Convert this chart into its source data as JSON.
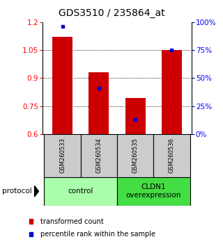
{
  "title": "GDS3510 / 235864_at",
  "samples": [
    "GSM260533",
    "GSM260534",
    "GSM260535",
    "GSM260536"
  ],
  "bar_bottoms": [
    0.6,
    0.6,
    0.6,
    0.6
  ],
  "bar_tops": [
    1.12,
    0.93,
    0.795,
    1.05
  ],
  "percentile_ranks": [
    0.96,
    0.41,
    0.13,
    0.75
  ],
  "ylim_left": [
    0.6,
    1.2
  ],
  "ylim_right": [
    0,
    100
  ],
  "yticks_left": [
    0.6,
    0.75,
    0.9,
    1.05,
    1.2
  ],
  "ytick_labels_left": [
    "0.6",
    "0.75",
    "0.9",
    "1.05",
    "1.2"
  ],
  "yticks_right": [
    0,
    25,
    50,
    75,
    100
  ],
  "ytick_labels_right": [
    "0%",
    "25%",
    "50%",
    "75%",
    "100%"
  ],
  "bar_color": "#cc0000",
  "percentile_color": "#0000cc",
  "groups": [
    {
      "label": "control",
      "color": "#aaffaa"
    },
    {
      "label": "CLDN1\noverexpression",
      "color": "#44dd44"
    }
  ],
  "protocol_label": "protocol",
  "legend": [
    {
      "color": "#cc0000",
      "label": "transformed count"
    },
    {
      "color": "#0000cc",
      "label": "percentile rank within the sample"
    }
  ],
  "sample_box_color": "#cccccc",
  "title_fontsize": 10,
  "tick_fontsize": 7.5,
  "bar_width": 0.55
}
